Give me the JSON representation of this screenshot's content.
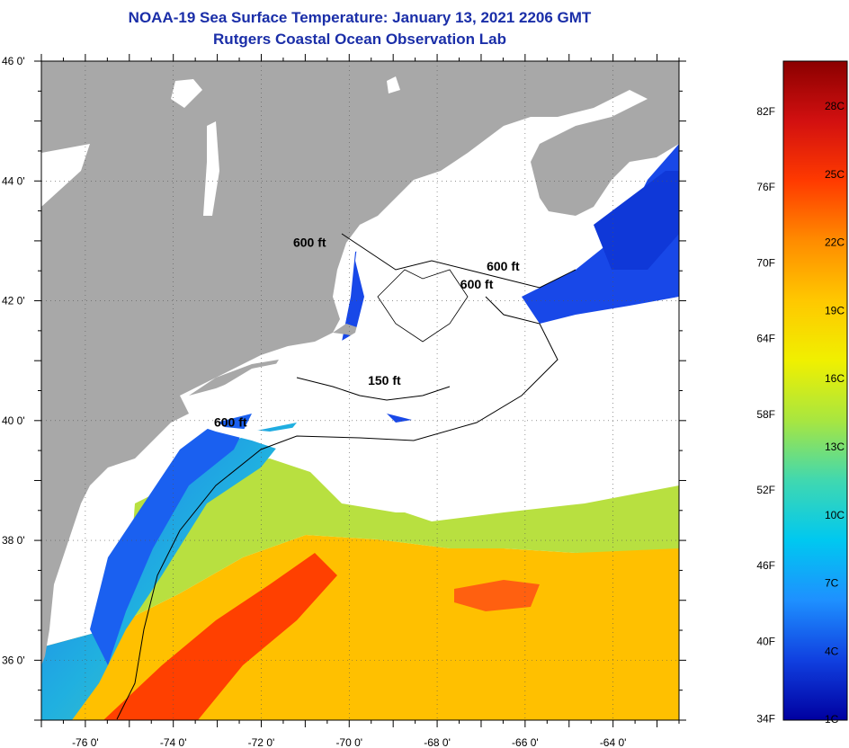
{
  "header": {
    "title": "NOAA-19 Sea Surface Temperature:  January 13, 2021 2206 GMT",
    "subtitle": "Rutgers Coastal Ocean Observation Lab"
  },
  "axes": {
    "lat_labels": [
      "46 0'",
      "44 0'",
      "42 0'",
      "40 0'",
      "38 0'",
      "36 0'"
    ],
    "lon_labels": [
      "-76 0'",
      "-74 0'",
      "-72 0'",
      "-70 0'",
      "-68 0'",
      "-66 0'",
      "-64 0'"
    ],
    "lat_range": [
      35,
      46
    ],
    "lon_range": [
      -77,
      -62.5
    ]
  },
  "contours": [
    {
      "label": "600 ft",
      "lon": -70.9,
      "lat": 42.9
    },
    {
      "label": "600 ft",
      "lon": -66.5,
      "lat": 42.5
    },
    {
      "label": "600 ft",
      "lon": -67.1,
      "lat": 42.2
    },
    {
      "label": "150 ft",
      "lon": -69.2,
      "lat": 40.6
    },
    {
      "label": "600 ft",
      "lon": -72.7,
      "lat": 39.9
    }
  ],
  "colorbar": {
    "fahrenheit": [
      "82F",
      "76F",
      "70F",
      "64F",
      "58F",
      "52F",
      "46F",
      "40F",
      "34F"
    ],
    "celsius": [
      "28C",
      "25C",
      "22C",
      "19C",
      "16C",
      "13C",
      "10C",
      "7C",
      "4C",
      "1C"
    ],
    "colors": [
      "#8b0000",
      "#d21010",
      "#ff3a00",
      "#ff8c00",
      "#ffc800",
      "#f0f000",
      "#a8e640",
      "#40d8b0",
      "#00c8f0",
      "#1e90ff",
      "#1040e0",
      "#0000a0"
    ]
  },
  "colors": {
    "land": "#a8a8a8",
    "cloud": "#ffffff",
    "title": "#1a2ea8"
  }
}
